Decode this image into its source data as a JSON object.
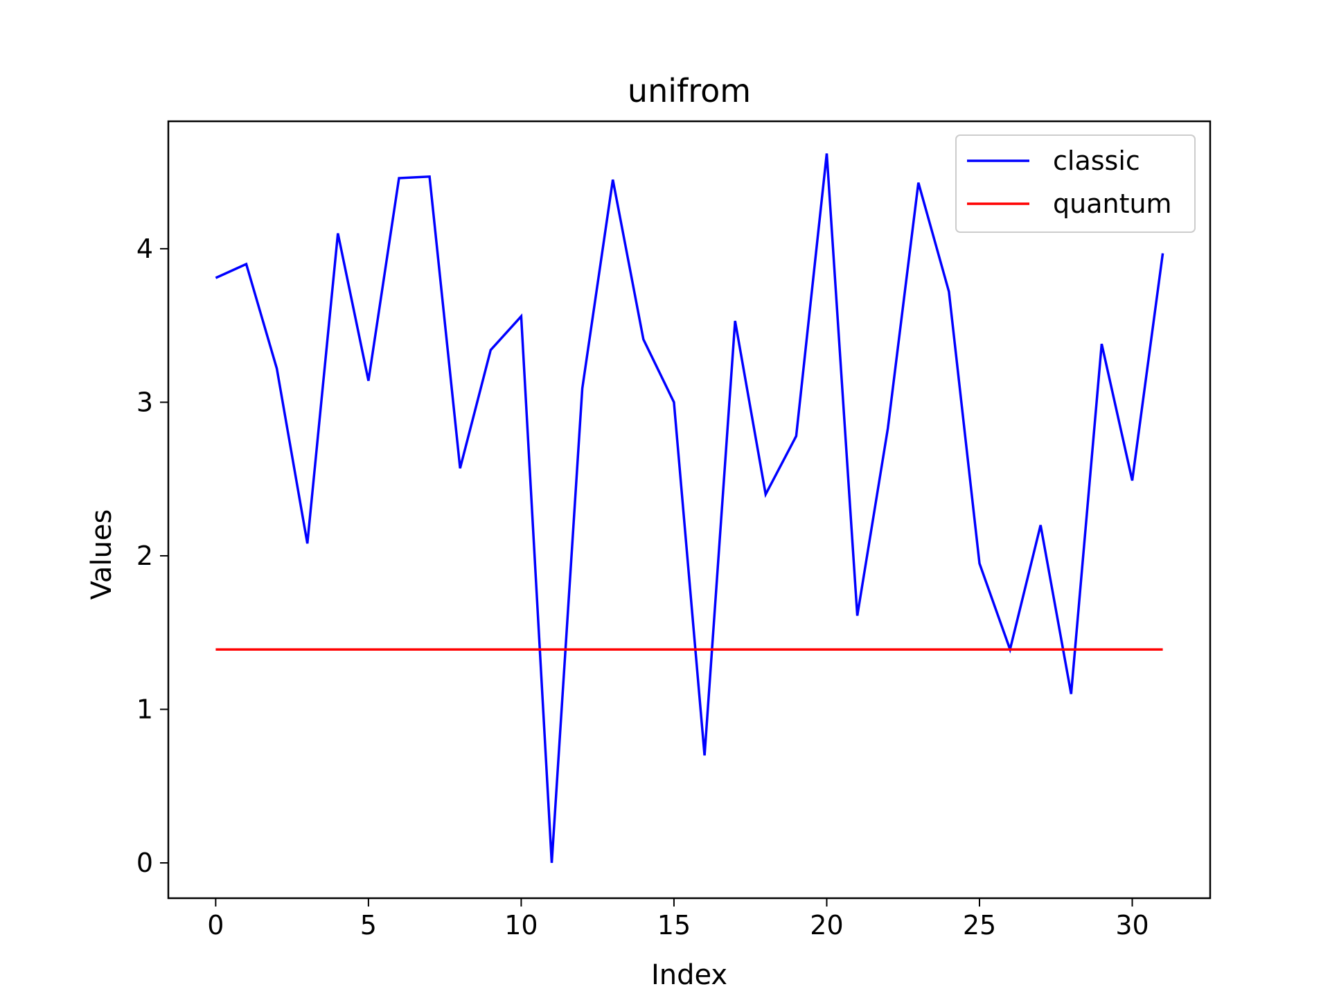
{
  "chart_data": {
    "type": "line",
    "title": "unifrom",
    "xlabel": "Index",
    "ylabel": "Values",
    "xlim": [
      -1.55,
      32.55
    ],
    "ylim": [
      -0.23,
      4.83
    ],
    "x_ticks": [
      0,
      5,
      10,
      15,
      20,
      25,
      30
    ],
    "y_ticks": [
      0,
      1,
      2,
      3,
      4
    ],
    "x_tick_labels": [
      "0",
      "5",
      "10",
      "15",
      "20",
      "25",
      "30"
    ],
    "y_tick_labels": [
      "0",
      "1",
      "2",
      "3",
      "4"
    ],
    "grid": false,
    "legend_position": "top-right",
    "x": [
      0,
      1,
      2,
      3,
      4,
      5,
      6,
      7,
      8,
      9,
      10,
      11,
      12,
      13,
      14,
      15,
      16,
      17,
      18,
      19,
      20,
      21,
      22,
      23,
      24,
      25,
      26,
      27,
      28,
      29,
      30,
      31
    ],
    "series": [
      {
        "name": "classic",
        "color": "#0000ff",
        "values": [
          3.81,
          3.9,
          3.22,
          2.08,
          4.1,
          3.14,
          4.46,
          4.47,
          2.57,
          3.34,
          3.56,
          0.0,
          3.09,
          4.45,
          3.41,
          3.0,
          0.7,
          3.53,
          2.4,
          2.78,
          4.62,
          1.61,
          2.83,
          4.43,
          3.72,
          1.95,
          1.39,
          2.2,
          1.1,
          3.38,
          2.49,
          3.97
        ]
      },
      {
        "name": "quantum",
        "color": "#ff0000",
        "values": [
          1.39,
          1.39,
          1.39,
          1.39,
          1.39,
          1.39,
          1.39,
          1.39,
          1.39,
          1.39,
          1.39,
          1.39,
          1.39,
          1.39,
          1.39,
          1.39,
          1.39,
          1.39,
          1.39,
          1.39,
          1.39,
          1.39,
          1.39,
          1.39,
          1.39,
          1.39,
          1.39,
          1.39,
          1.39,
          1.39,
          1.39,
          1.39
        ]
      }
    ]
  }
}
